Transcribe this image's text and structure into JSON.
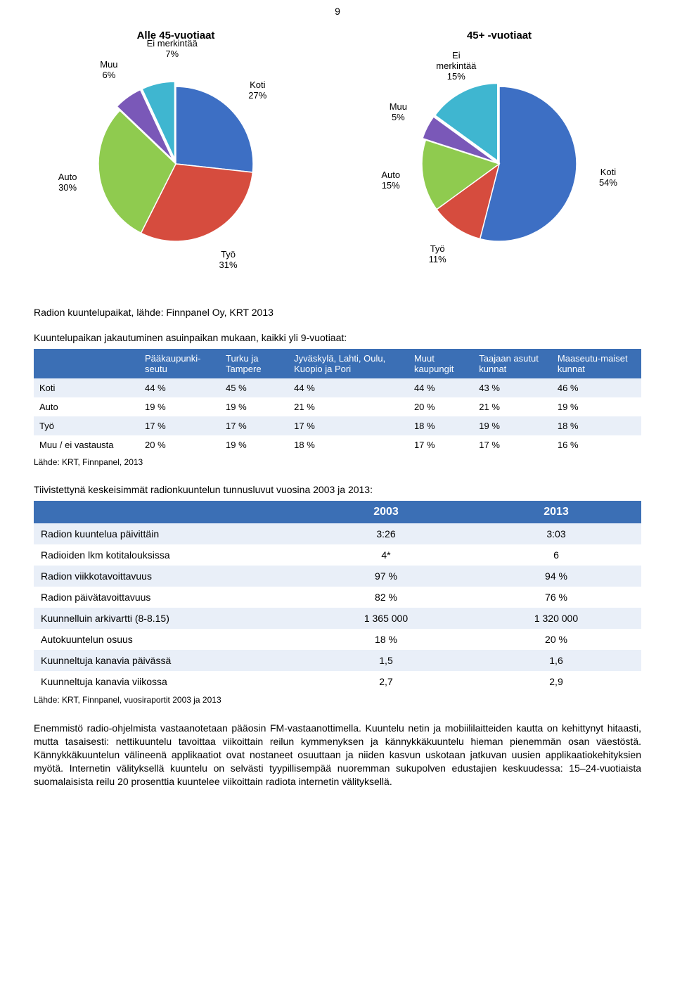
{
  "page_number": "9",
  "colors": {
    "header_bg": "#3b6fb5",
    "header_text": "#ffffff",
    "band_bg": "#e9eff8",
    "text": "#000000",
    "page_bg": "#ffffff"
  },
  "pies": [
    {
      "title": "Alle 45-vuotiaat",
      "radius": 110,
      "label_offset": 1.42,
      "slices": [
        {
          "label": "Koti",
          "pct": 27,
          "color": "#3d6fc4",
          "explode": 0
        },
        {
          "label": "Työ",
          "pct": 31,
          "color": "#d64c3e",
          "explode": 0
        },
        {
          "label": "Auto",
          "pct": 30,
          "color": "#8fcb4f",
          "explode": 0
        },
        {
          "label": "Muu",
          "pct": 6,
          "color": "#7a58b8",
          "explode": 7
        },
        {
          "label": "Ei merkintää",
          "pct": 7,
          "color": "#3fb6d0",
          "explode": 7,
          "label_shift": [
            30,
            -4
          ]
        }
      ]
    },
    {
      "title": "45+ -vuotiaat",
      "radius": 110,
      "label_offset": 1.42,
      "slices": [
        {
          "label": "Koti",
          "pct": 54,
          "color": "#3d6fc4",
          "explode": 0
        },
        {
          "label": "Työ",
          "pct": 11,
          "color": "#d64c3e",
          "explode": 0
        },
        {
          "label": "Auto",
          "pct": 15,
          "color": "#8fcb4f",
          "explode": 0
        },
        {
          "label": "Muu",
          "pct": 5,
          "color": "#7a58b8",
          "explode": 5
        },
        {
          "label": "Ei\nmerkintää",
          "pct": 15,
          "color": "#3fb6d0",
          "explode": 5,
          "label_shift": [
            12,
            -2
          ]
        }
      ]
    }
  ],
  "caption1": "Radion kuuntelupaikat, lähde: Finnpanel Oy, KRT 2013",
  "subhead1": "Kuuntelupaikan jakautuminen asuinpaikan mukaan, kaikki yli 9-vuotiaat:",
  "table1": {
    "columns": [
      "",
      "Pääkaupunki-seutu",
      "Turku ja Tampere",
      "Jyväskylä, Lahti, Oulu, Kuopio ja Pori",
      "Muut kaupungit",
      "Taajaan asutut kunnat",
      "Maaseutu-maiset kunnat"
    ],
    "rows": [
      [
        "Koti",
        "44 %",
        "45 %",
        "44 %",
        "44 %",
        "43 %",
        "46 %"
      ],
      [
        "Auto",
        "19 %",
        "19 %",
        "21 %",
        "20 %",
        "21 %",
        "19 %"
      ],
      [
        "Työ",
        "17 %",
        "17 %",
        "17 %",
        "18 %",
        "19 %",
        "18 %"
      ],
      [
        "Muu / ei vastausta",
        "20 %",
        "19 %",
        "18 %",
        "17 %",
        "17 %",
        "16 %"
      ]
    ]
  },
  "source1": "Lähde: KRT, Finnpanel, 2013",
  "subhead2": "Tiivistettynä keskeisimmät radionkuuntelun tunnusluvut vuosina 2003 ja 2013:",
  "table2": {
    "columns": [
      "",
      "2003",
      "2013"
    ],
    "rows": [
      [
        "Radion kuuntelua päivittäin",
        "3:26",
        "3:03"
      ],
      [
        "Radioiden lkm kotitalouksissa",
        "4*",
        "6"
      ],
      [
        "Radion viikkotavoittavuus",
        "97 %",
        "94 %"
      ],
      [
        "Radion päivätavoittavuus",
        "82 %",
        "76 %"
      ],
      [
        "Kuunnelluin arkivartti (8-8.15)",
        "1 365 000",
        "1 320 000"
      ],
      [
        "Autokuuntelun osuus",
        "18 %",
        "20 %"
      ],
      [
        "Kuunneltuja kanavia päivässä",
        "1,5",
        "1,6"
      ],
      [
        "Kuunneltuja kanavia viikossa",
        "2,7",
        "2,9"
      ]
    ]
  },
  "source2": "Lähde: KRT, Finnpanel, vuosiraportit 2003 ja 2013",
  "bodytext": "Enemmistö radio-ohjelmista vastaanotetaan pääosin FM-vastaanottimella. Kuuntelu netin ja mobiililaitteiden kautta on kehittynyt hitaasti, mutta tasaisesti: nettikuuntelu tavoittaa viikoittain reilun kymmenyksen ja kännykkäkuuntelu hieman pienemmän osan väestöstä. Kännykkäkuuntelun välineenä applikaatiot ovat nostaneet osuuttaan ja niiden kasvun uskotaan jatkuvan uusien applikaatiokehityksien myötä. Internetin välityksellä kuuntelu on selvästi tyypillisempää nuoremman sukupolven edustajien keskuudessa: 15–24-vuotiaista suomalaisista reilu 20 prosenttia kuuntelee viikoittain radiota internetin välityksellä."
}
